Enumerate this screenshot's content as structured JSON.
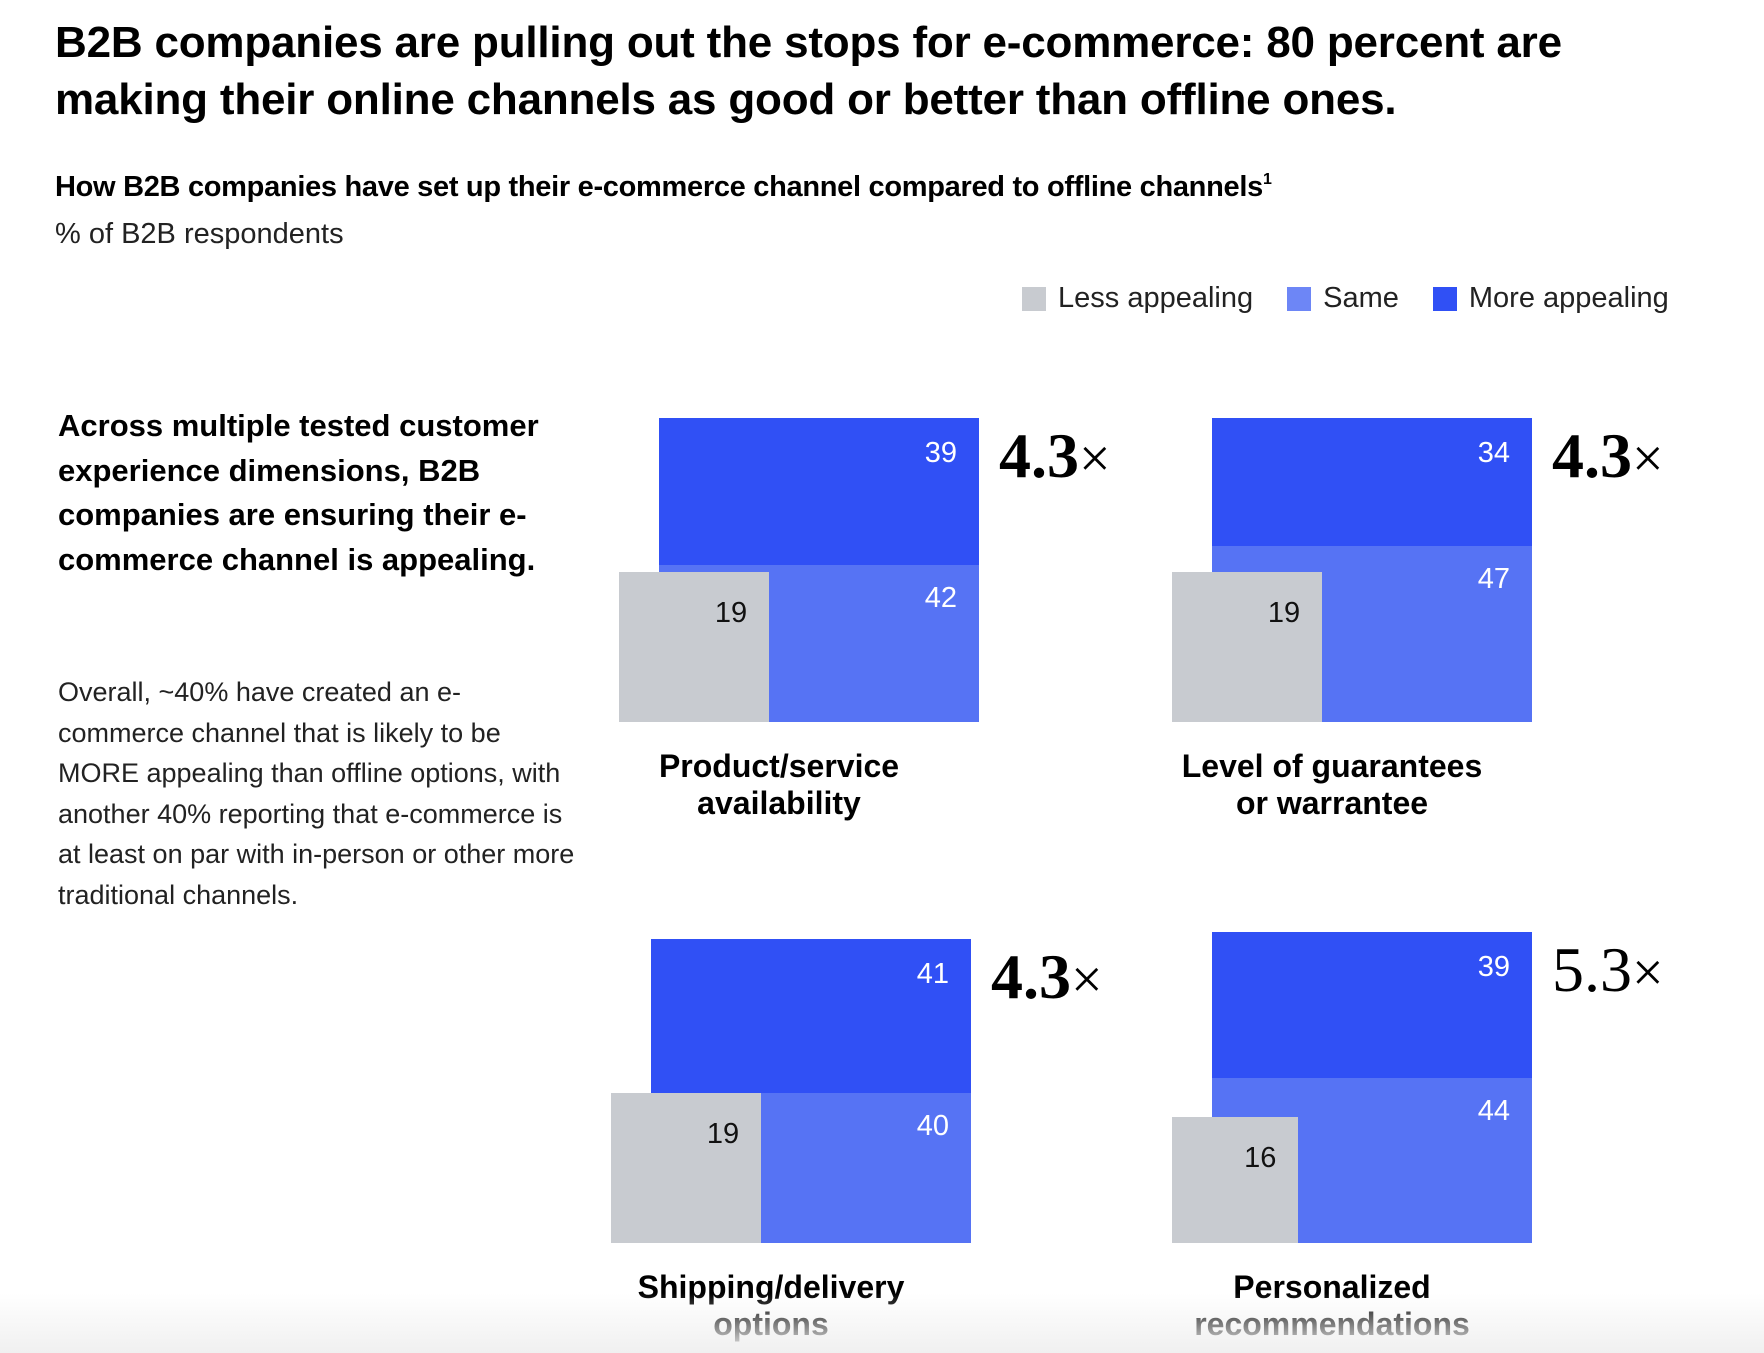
{
  "header": {
    "title": "B2B companies are pulling out the stops for e-commerce: 80 percent are making their online channels as good or better than offline ones.",
    "subtitle": "How B2B companies have set up their e-commerce channel compared to offline channels",
    "subtitle_footnote": "1",
    "unit": "% of B2B respondents"
  },
  "legend": [
    {
      "label": "Less appealing",
      "color": "#c8cbd0"
    },
    {
      "label": "Same",
      "color": "#5673f4"
    },
    {
      "label": "More appealing",
      "color": "#3050f5"
    }
  ],
  "sidebar": {
    "lead": "Across multiple tested customer experience dimensions, B2B companies are ensuring their e-commerce channel is appealing.",
    "body": "Overall, ~40% have created an e-commerce channel that is likely to be MORE appealing than offline options, with another 40% reporting that e-commerce is at least on par with in-person or other more traditional channels."
  },
  "colors": {
    "less": "#c8cbd0",
    "same": "#5673f4",
    "more": "#3050f5"
  },
  "chart_data": {
    "type": "bar",
    "title": "How B2B companies have set up their e-commerce channel compared to offline channels",
    "ylabel": "% of B2B respondents",
    "series_names": [
      "Less appealing",
      "Same",
      "More appealing"
    ],
    "categories": [
      "Product/service availability",
      "Level of guarantees or warrantee",
      "Shipping/delivery options",
      "Personalized recommendations"
    ],
    "panels": [
      {
        "label_lines": [
          "Product/service",
          "availability"
        ],
        "less": 19,
        "same": 42,
        "more": 39,
        "multiplier": "4.3",
        "multiplier_bold": true
      },
      {
        "label_lines": [
          "Level of guarantees",
          "or warrantee"
        ],
        "less": 19,
        "same": 47,
        "more": 34,
        "multiplier": "4.3",
        "multiplier_bold": true
      },
      {
        "label_lines": [
          "Shipping/delivery",
          "options"
        ],
        "less": 19,
        "same": 40,
        "more": 41,
        "multiplier": "4.3",
        "multiplier_bold": true
      },
      {
        "label_lines": [
          "Personalized",
          "recommendations"
        ],
        "less": 16,
        "same": 44,
        "more": 39,
        "multiplier": "5.3",
        "multiplier_bold": false
      }
    ],
    "multiplier_suffix": "×",
    "legend_position": "top-right"
  }
}
